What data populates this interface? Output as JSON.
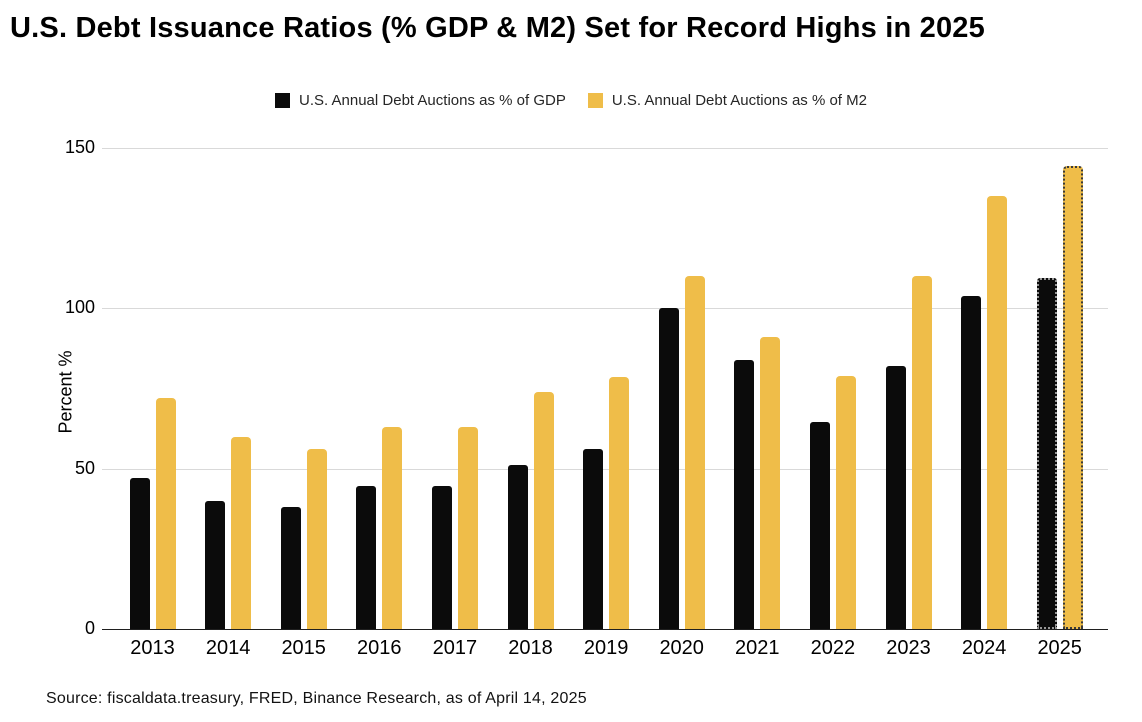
{
  "title": "U.S. Debt Issuance Ratios (% GDP & M2) Set for Record Highs in 2025",
  "footer": {
    "source_text": "Source: fiscaldata.treasury, FRED, Binance Research, as of April 14, 2025"
  },
  "chart_data": {
    "type": "bar",
    "title": "U.S. Debt Issuance Ratios (% GDP & M2) Set for Record Highs in 2025",
    "categories": [
      "2013",
      "2014",
      "2015",
      "2016",
      "2017",
      "2018",
      "2019",
      "2020",
      "2021",
      "2022",
      "2023",
      "2024",
      "2025"
    ],
    "series": [
      {
        "name": "U.S. Annual Debt Auctions as % of GDP",
        "color": "#0b0b0b",
        "values": [
          47,
          40,
          38,
          44.5,
          44.5,
          51,
          56,
          100,
          84,
          64.5,
          82,
          104,
          109.5
        ]
      },
      {
        "name": "U.S. Annual Debt Auctions as % of  M2",
        "color": "#efbd49",
        "values": [
          72,
          60,
          56,
          63,
          63,
          74,
          78.5,
          110,
          91,
          79,
          110,
          135,
          144.5
        ]
      }
    ],
    "xlabel": "",
    "ylabel": "Percent %",
    "ylim": [
      0,
      150
    ],
    "yticks": [
      0,
      50,
      100,
      150
    ],
    "grid": true,
    "legend_position": "top-center",
    "annotations": {
      "projected_category": "2025",
      "projected_style": "dotted-outline"
    }
  }
}
